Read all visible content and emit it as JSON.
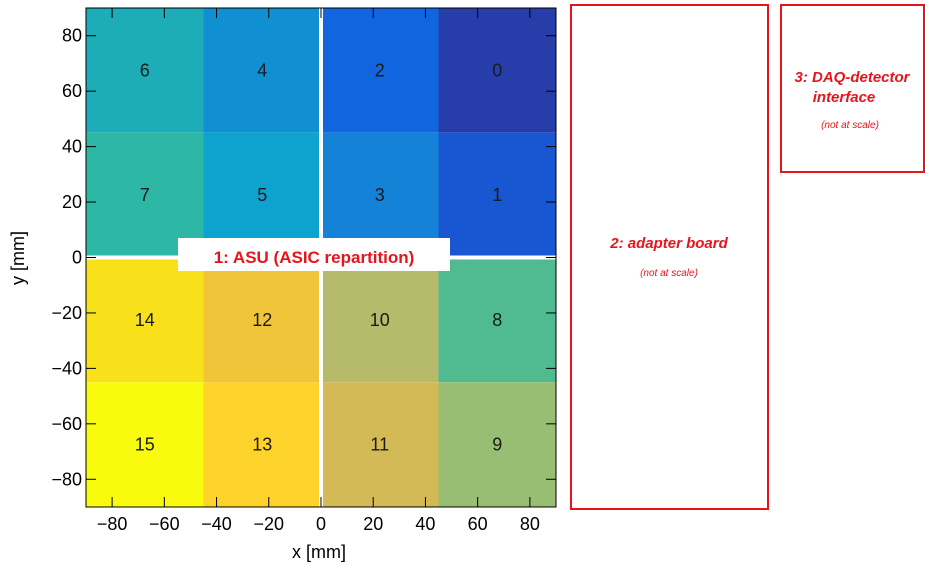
{
  "chart_data": {
    "type": "heatmap",
    "x_axis": {
      "label": "x [mm]",
      "range": [
        -90,
        90
      ],
      "ticks": [
        {
          "value": -80,
          "label": "−80"
        },
        {
          "value": -60,
          "label": "−60"
        },
        {
          "value": -40,
          "label": "−40"
        },
        {
          "value": -20,
          "label": "−20"
        },
        {
          "value": 0,
          "label": "0"
        },
        {
          "value": 20,
          "label": "20"
        },
        {
          "value": 40,
          "label": "40"
        },
        {
          "value": 60,
          "label": "60"
        },
        {
          "value": 80,
          "label": "80"
        }
      ]
    },
    "y_axis": {
      "label": "y [mm]",
      "range": [
        -90,
        90
      ],
      "ticks": [
        {
          "value": 80,
          "label": "80"
        },
        {
          "value": 60,
          "label": "60"
        },
        {
          "value": 40,
          "label": "40"
        },
        {
          "value": 20,
          "label": "20"
        },
        {
          "value": 0,
          "label": "0"
        },
        {
          "value": -20,
          "label": "−20"
        },
        {
          "value": -40,
          "label": "−40"
        },
        {
          "value": -60,
          "label": "−60"
        },
        {
          "value": -80,
          "label": "−80"
        }
      ]
    },
    "cells": [
      {
        "id": "6",
        "x": [
          -90,
          -45
        ],
        "y": [
          45,
          90
        ],
        "color": "#1cadb8"
      },
      {
        "id": "4",
        "x": [
          -45,
          0
        ],
        "y": [
          45,
          90
        ],
        "color": "#108fd2"
      },
      {
        "id": "2",
        "x": [
          0,
          45
        ],
        "y": [
          45,
          90
        ],
        "color": "#1166e0"
      },
      {
        "id": "0",
        "x": [
          45,
          90
        ],
        "y": [
          45,
          90
        ],
        "color": "#273eaa"
      },
      {
        "id": "7",
        "x": [
          -90,
          -45
        ],
        "y": [
          0,
          45
        ],
        "color": "#2db7a5"
      },
      {
        "id": "5",
        "x": [
          -45,
          0
        ],
        "y": [
          0,
          45
        ],
        "color": "#0ea2ce"
      },
      {
        "id": "3",
        "x": [
          0,
          45
        ],
        "y": [
          0,
          45
        ],
        "color": "#1482d6"
      },
      {
        "id": "1",
        "x": [
          45,
          90
        ],
        "y": [
          0,
          45
        ],
        "color": "#1957d2"
      },
      {
        "id": "14",
        "x": [
          -90,
          -45
        ],
        "y": [
          -45,
          0
        ],
        "color": "#f8e11b"
      },
      {
        "id": "12",
        "x": [
          -45,
          0
        ],
        "y": [
          -45,
          0
        ],
        "color": "#f0c53a"
      },
      {
        "id": "10",
        "x": [
          0,
          45
        ],
        "y": [
          -45,
          0
        ],
        "color": "#b6bb6b"
      },
      {
        "id": "8",
        "x": [
          45,
          90
        ],
        "y": [
          -45,
          0
        ],
        "color": "#50bb91"
      },
      {
        "id": "15",
        "x": [
          -90,
          -45
        ],
        "y": [
          -90,
          -45
        ],
        "color": "#f9fb0e"
      },
      {
        "id": "13",
        "x": [
          -45,
          0
        ],
        "y": [
          -90,
          -45
        ],
        "color": "#fdd22b"
      },
      {
        "id": "11",
        "x": [
          0,
          45
        ],
        "y": [
          -90,
          -45
        ],
        "color": "#d4ba56"
      },
      {
        "id": "9",
        "x": [
          45,
          90
        ],
        "y": [
          -90,
          -45
        ],
        "color": "#97be72"
      }
    ],
    "asu_label": "1: ASU (ASIC repartition)",
    "divider_color": "#ffffff"
  },
  "boxes": {
    "adapter": {
      "title": "2: adapter board",
      "note": "(not at scale)"
    },
    "daq": {
      "title_line1": "3: DAQ-detector",
      "title_line2": "interface",
      "note": "(not at scale)"
    },
    "border_color": "#e8141b"
  }
}
